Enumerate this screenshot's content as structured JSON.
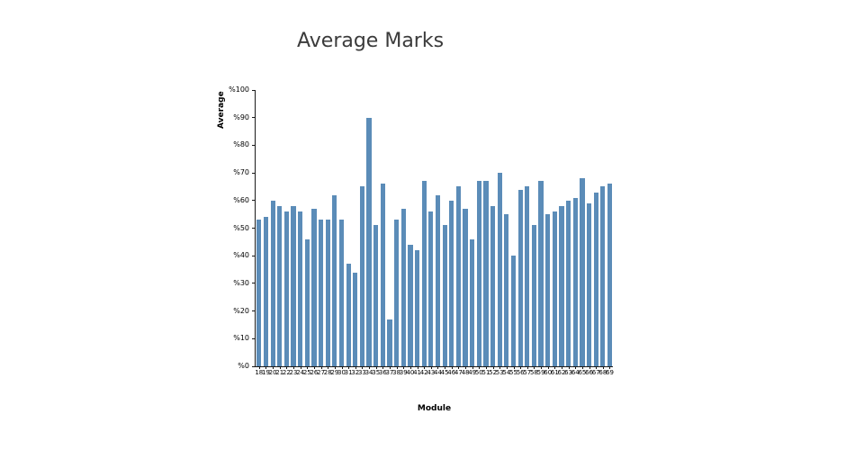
{
  "chart_data": {
    "type": "bar",
    "title": "Average Marks",
    "xlabel": "Module",
    "ylabel": "Average",
    "ylim": [
      0,
      100
    ],
    "y_ticks": [
      "%0",
      "%10",
      "%20",
      "%30",
      "%40",
      "%50",
      "%60",
      "%70",
      "%80",
      "%90",
      "%100"
    ],
    "bar_color": "#5b8cb8",
    "legend": null,
    "grid": false,
    "categories": [
      18,
      19,
      20,
      21,
      22,
      23,
      24,
      25,
      26,
      27,
      28,
      29,
      30,
      31,
      32,
      33,
      34,
      35,
      36,
      37,
      38,
      39,
      40,
      41,
      42,
      43,
      44,
      45,
      46,
      47,
      48,
      49,
      50,
      51,
      52,
      53,
      54,
      55,
      56,
      57,
      58,
      59,
      60,
      61,
      62,
      63,
      64,
      65,
      66,
      67,
      68,
      69
    ],
    "values": [
      53,
      54,
      60,
      58,
      56,
      58,
      56,
      46,
      57,
      53,
      53,
      62,
      53,
      37,
      34,
      65,
      90,
      51,
      66,
      17,
      53,
      57,
      44,
      42,
      67,
      56,
      62,
      51,
      60,
      65,
      57,
      46,
      67,
      67,
      58,
      70,
      55,
      40,
      64,
      65,
      51,
      67,
      55,
      56,
      58,
      60,
      61,
      68,
      59,
      63,
      65,
      66
    ]
  }
}
